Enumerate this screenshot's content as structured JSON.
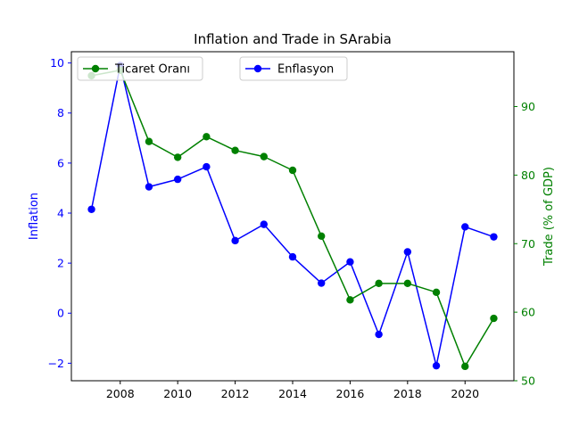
{
  "chart_data": {
    "type": "line",
    "title": "Inflation and Trade in SArabia",
    "x": [
      2007,
      2008,
      2009,
      2010,
      2011,
      2012,
      2013,
      2014,
      2015,
      2016,
      2017,
      2018,
      2019,
      2020,
      2021
    ],
    "xlim": [
      2006.3,
      2021.7
    ],
    "x_ticks": [
      2008,
      2010,
      2012,
      2014,
      2016,
      2018,
      2020
    ],
    "grid": false,
    "series": [
      {
        "name": "Enflasyon",
        "axis": "left",
        "color": "#0000ff",
        "values": [
          4.15,
          9.9,
          5.05,
          5.35,
          5.85,
          2.9,
          3.55,
          2.25,
          1.2,
          2.05,
          -0.85,
          2.45,
          -2.1,
          3.45,
          3.05
        ]
      },
      {
        "name": "Ticaret Oranı",
        "axis": "right",
        "color": "#008000",
        "values": [
          94.5,
          95.3,
          84.9,
          82.6,
          85.6,
          83.6,
          82.7,
          80.7,
          71.1,
          61.8,
          64.2,
          64.2,
          62.9,
          52.1,
          59.1
        ]
      }
    ],
    "y_left": {
      "label": "Inflation",
      "color": "#0000ff",
      "lim": [
        -2.7,
        10.45
      ],
      "ticks": [
        -2,
        0,
        2,
        4,
        6,
        8,
        10
      ],
      "tick_labels": [
        "−2",
        "0",
        "2",
        "4",
        "6",
        "8",
        "10"
      ]
    },
    "y_right": {
      "label": "Trade (% of GDP)",
      "color": "#008000",
      "lim": [
        50,
        98
      ],
      "ticks": [
        50,
        60,
        70,
        80,
        90
      ],
      "tick_labels": [
        "50",
        "60",
        "70",
        "80",
        "90"
      ]
    },
    "legends": [
      {
        "series": "Ticaret Oranı",
        "placement": "upper-left"
      },
      {
        "series": "Enflasyon",
        "placement": "upper-center"
      }
    ]
  }
}
